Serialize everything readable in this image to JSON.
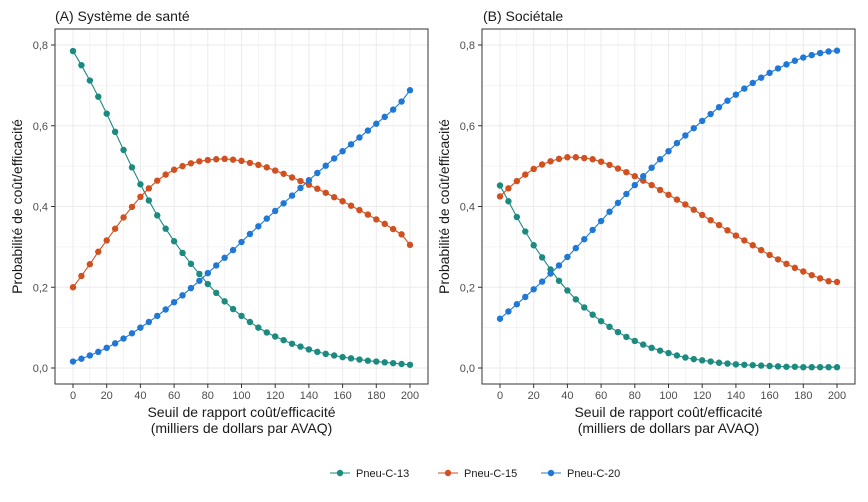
{
  "colors": {
    "Pneu-C-13": "#1b8a80",
    "Pneu-C-15": "#d1501f",
    "Pneu-C-20": "#1f78d6",
    "panel_bg": "#ffffff",
    "grid": "#ebebeb",
    "border": "#333333"
  },
  "legend": {
    "items": [
      "Pneu-C-13",
      "Pneu-C-15",
      "Pneu-C-20"
    ],
    "position": "bottom"
  },
  "chart_data": [
    {
      "type": "line",
      "title": "(A) Système de santé",
      "xlabel_line1": "Seuil de rapport coût/efficacité",
      "xlabel_line2": "(milliers de dollars par AVAQ)",
      "ylabel": "Probabilité de coût/efficacité",
      "xlim": [
        0,
        200
      ],
      "ylim": [
        0,
        0.8
      ],
      "grid": true,
      "x_ticks": [
        0,
        20,
        40,
        60,
        80,
        100,
        120,
        140,
        160,
        180,
        200
      ],
      "x_tick_labels": [
        "0",
        "20",
        "40",
        "60",
        "80",
        "100",
        "120",
        "140",
        "160",
        "180",
        "200"
      ],
      "y_ticks": [
        0,
        0.2,
        0.4,
        0.6,
        0.8
      ],
      "y_tick_labels": [
        "0,0",
        "0,2",
        "0,4",
        "0,6",
        "0,8"
      ],
      "x": [
        0,
        5,
        10,
        15,
        20,
        25,
        30,
        35,
        40,
        45,
        50,
        55,
        60,
        65,
        70,
        75,
        80,
        85,
        90,
        95,
        100,
        105,
        110,
        115,
        120,
        125,
        130,
        135,
        140,
        145,
        150,
        155,
        160,
        165,
        170,
        175,
        180,
        185,
        190,
        195,
        200
      ],
      "series": [
        {
          "name": "Pneu-C-13",
          "values": [
            0.785,
            0.75,
            0.712,
            0.672,
            0.63,
            0.585,
            0.54,
            0.497,
            0.455,
            0.415,
            0.378,
            0.345,
            0.314,
            0.285,
            0.258,
            0.233,
            0.208,
            0.186,
            0.165,
            0.146,
            0.129,
            0.114,
            0.1,
            0.088,
            0.078,
            0.069,
            0.06,
            0.053,
            0.046,
            0.04,
            0.035,
            0.031,
            0.027,
            0.024,
            0.021,
            0.018,
            0.016,
            0.014,
            0.012,
            0.01,
            0.008
          ]
        },
        {
          "name": "Pneu-C-15",
          "values": [
            0.2,
            0.228,
            0.257,
            0.288,
            0.316,
            0.345,
            0.373,
            0.399,
            0.424,
            0.445,
            0.464,
            0.479,
            0.491,
            0.5,
            0.507,
            0.512,
            0.515,
            0.517,
            0.518,
            0.516,
            0.513,
            0.508,
            0.503,
            0.497,
            0.489,
            0.481,
            0.472,
            0.463,
            0.454,
            0.444,
            0.434,
            0.423,
            0.413,
            0.402,
            0.391,
            0.38,
            0.368,
            0.357,
            0.344,
            0.331,
            0.305
          ]
        },
        {
          "name": "Pneu-C-20",
          "values": [
            0.016,
            0.023,
            0.031,
            0.04,
            0.05,
            0.061,
            0.073,
            0.086,
            0.1,
            0.114,
            0.129,
            0.145,
            0.163,
            0.18,
            0.198,
            0.216,
            0.235,
            0.254,
            0.273,
            0.292,
            0.312,
            0.332,
            0.351,
            0.37,
            0.389,
            0.408,
            0.427,
            0.446,
            0.465,
            0.483,
            0.501,
            0.519,
            0.537,
            0.554,
            0.571,
            0.588,
            0.605,
            0.622,
            0.64,
            0.66,
            0.688
          ]
        }
      ]
    },
    {
      "type": "line",
      "title": "(B) Sociétale",
      "xlabel_line1": "Seuil de rapport coût/efficacité",
      "xlabel_line2": "(milliers de dollars par AVAQ)",
      "ylabel": "Probabilité de coût/efficacité",
      "xlim": [
        0,
        200
      ],
      "ylim": [
        0,
        0.8
      ],
      "grid": true,
      "x_ticks": [
        0,
        20,
        40,
        60,
        80,
        100,
        120,
        140,
        160,
        180,
        200
      ],
      "x_tick_labels": [
        "0",
        "20",
        "40",
        "60",
        "80",
        "100",
        "120",
        "140",
        "160",
        "180",
        "200"
      ],
      "y_ticks": [
        0,
        0.2,
        0.4,
        0.6,
        0.8
      ],
      "y_tick_labels": [
        "0,0",
        "0,2",
        "0,4",
        "0,6",
        "0,8"
      ],
      "x": [
        0,
        5,
        10,
        15,
        20,
        25,
        30,
        35,
        40,
        45,
        50,
        55,
        60,
        65,
        70,
        75,
        80,
        85,
        90,
        95,
        100,
        105,
        110,
        115,
        120,
        125,
        130,
        135,
        140,
        145,
        150,
        155,
        160,
        165,
        170,
        175,
        180,
        185,
        190,
        195,
        200
      ],
      "series": [
        {
          "name": "Pneu-C-13",
          "values": [
            0.452,
            0.413,
            0.374,
            0.338,
            0.304,
            0.274,
            0.244,
            0.216,
            0.192,
            0.17,
            0.15,
            0.132,
            0.116,
            0.102,
            0.089,
            0.077,
            0.067,
            0.058,
            0.05,
            0.043,
            0.037,
            0.031,
            0.026,
            0.022,
            0.019,
            0.016,
            0.013,
            0.011,
            0.009,
            0.008,
            0.007,
            0.006,
            0.005,
            0.004,
            0.003,
            0.003,
            0.002,
            0.002,
            0.002,
            0.002,
            0.002
          ]
        },
        {
          "name": "Pneu-C-15",
          "values": [
            0.425,
            0.445,
            0.463,
            0.479,
            0.493,
            0.504,
            0.512,
            0.518,
            0.522,
            0.522,
            0.52,
            0.517,
            0.511,
            0.503,
            0.494,
            0.485,
            0.475,
            0.464,
            0.453,
            0.441,
            0.429,
            0.417,
            0.405,
            0.392,
            0.379,
            0.366,
            0.354,
            0.341,
            0.328,
            0.316,
            0.304,
            0.292,
            0.28,
            0.269,
            0.258,
            0.248,
            0.239,
            0.23,
            0.222,
            0.215,
            0.213
          ]
        },
        {
          "name": "Pneu-C-20",
          "values": [
            0.122,
            0.14,
            0.158,
            0.176,
            0.195,
            0.214,
            0.234,
            0.254,
            0.275,
            0.297,
            0.319,
            0.342,
            0.364,
            0.387,
            0.409,
            0.431,
            0.453,
            0.475,
            0.496,
            0.517,
            0.537,
            0.557,
            0.576,
            0.594,
            0.612,
            0.629,
            0.646,
            0.662,
            0.677,
            0.692,
            0.706,
            0.719,
            0.731,
            0.742,
            0.752,
            0.761,
            0.769,
            0.775,
            0.78,
            0.784,
            0.786
          ]
        }
      ]
    }
  ]
}
